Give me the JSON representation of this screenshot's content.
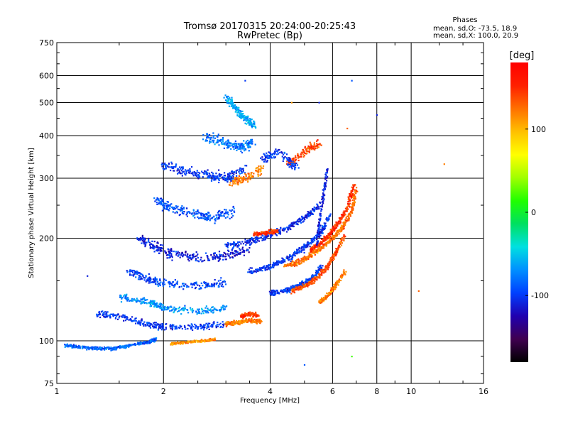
{
  "chart_data": {
    "type": "scatter",
    "title": "Tromsø 20170315 20:24:00-20:25:43",
    "subtitle": "RwPretec (Bp)",
    "xlabel": "Frequency [MHz]",
    "ylabel": "Stationary phase Virtual Height [km]",
    "x_scale": "log",
    "y_scale": "log",
    "xlim": [
      1,
      16
    ],
    "ylim": [
      75,
      750
    ],
    "x_ticks": [
      1,
      2,
      4,
      6,
      8,
      10,
      16
    ],
    "x_tick_labels": [
      "1",
      "2",
      "4",
      "6",
      "8",
      "10",
      "16"
    ],
    "y_ticks": [
      75,
      100,
      200,
      300,
      400,
      500,
      600,
      750
    ],
    "y_tick_labels": [
      "75",
      "100",
      "200",
      "300",
      "400",
      "500",
      "600",
      "750"
    ],
    "grid": true,
    "stats": {
      "title": "Phases",
      "line_o": "mean, sd,O: -73.5, 18.9",
      "line_x": "mean, sd,X: 100.0, 20.9"
    },
    "colorbar": {
      "label": "[deg]",
      "range": [
        -180,
        180
      ],
      "ticks": [
        100,
        0,
        -100
      ],
      "tick_labels": [
        "100",
        "0",
        "-100"
      ],
      "colors": [
        "#000000",
        "#400050",
        "#2000b0",
        "#0040ff",
        "#0090ff",
        "#00e0e0",
        "#00e060",
        "#20ff00",
        "#a0ff00",
        "#ffff00",
        "#ffc000",
        "#ff7000",
        "#ff2000",
        "#ff0000"
      ]
    },
    "traces": [
      {
        "x": [
          1.05,
          1.15,
          1.3,
          1.45,
          1.6,
          1.8,
          1.9
        ],
        "y": [
          97,
          96,
          95,
          95,
          97,
          99,
          101
        ],
        "phase": -85,
        "spread": 0.015
      },
      {
        "x": [
          1.3,
          1.5,
          1.8,
          2.0,
          2.5,
          3.0
        ],
        "y": [
          120,
          118,
          112,
          110,
          110,
          112
        ],
        "phase": -100,
        "spread": 0.03
      },
      {
        "x": [
          1.5,
          1.8,
          2.0,
          2.5,
          3.0
        ],
        "y": [
          135,
          130,
          125,
          122,
          125
        ],
        "phase": -70,
        "spread": 0.035
      },
      {
        "x": [
          1.6,
          1.8,
          2.0,
          2.5,
          3.0
        ],
        "y": [
          160,
          152,
          148,
          145,
          148
        ],
        "phase": -95,
        "spread": 0.04
      },
      {
        "x": [
          1.7,
          1.9,
          2.1,
          2.5,
          3.0,
          3.5
        ],
        "y": [
          200,
          188,
          180,
          175,
          178,
          185
        ],
        "phase": -110,
        "spread": 0.045
      },
      {
        "x": [
          1.9,
          2.1,
          2.5,
          2.8,
          3.2
        ],
        "y": [
          260,
          245,
          235,
          230,
          240
        ],
        "phase": -90,
        "spread": 0.05
      },
      {
        "x": [
          2.0,
          2.3,
          2.7,
          3.0,
          3.4
        ],
        "y": [
          330,
          315,
          305,
          300,
          320
        ],
        "phase": -100,
        "spread": 0.05
      },
      {
        "x": [
          2.6,
          3.0,
          3.3,
          3.6
        ],
        "y": [
          400,
          380,
          370,
          380
        ],
        "phase": -80,
        "spread": 0.05
      },
      {
        "x": [
          3.0,
          3.2,
          3.4,
          3.6
        ],
        "y": [
          520,
          480,
          450,
          430
        ],
        "phase": -60,
        "spread": 0.04
      },
      {
        "x": [
          3.1,
          3.4,
          3.8
        ],
        "y": [
          290,
          300,
          320
        ],
        "phase": 120,
        "spread": 0.04
      },
      {
        "x": [
          3.0,
          3.2,
          3.5,
          3.8
        ],
        "y": [
          112,
          113,
          115,
          114
        ],
        "phase": 120,
        "spread": 0.02
      },
      {
        "x": [
          3.3,
          3.5,
          3.7
        ],
        "y": [
          118,
          120,
          119
        ],
        "phase": 145,
        "spread": 0.02
      },
      {
        "x": [
          2.1,
          2.3,
          2.6,
          2.8
        ],
        "y": [
          98,
          99,
          100,
          101
        ],
        "phase": 115,
        "spread": 0.012
      },
      {
        "x": [
          3.0,
          3.5,
          4.0,
          4.5,
          5.0,
          5.5
        ],
        "y": [
          190,
          195,
          205,
          215,
          230,
          250
        ],
        "phase": -105,
        "spread": 0.03
      },
      {
        "x": [
          3.5,
          4.0,
          4.5,
          5.0,
          5.5,
          5.9
        ],
        "y": [
          160,
          165,
          175,
          188,
          205,
          235
        ],
        "phase": -100,
        "spread": 0.03
      },
      {
        "x": [
          4.0,
          4.4,
          4.8,
          5.2,
          5.6
        ],
        "y": [
          138,
          140,
          145,
          152,
          165
        ],
        "phase": -100,
        "spread": 0.025
      },
      {
        "x": [
          3.6,
          3.9,
          4.2
        ],
        "y": [
          205,
          208,
          210
        ],
        "phase": 150,
        "spread": 0.02
      },
      {
        "x": [
          4.4,
          4.8,
          5.2,
          5.6,
          6.0,
          6.4,
          6.8,
          7.0
        ],
        "y": [
          165,
          170,
          178,
          188,
          200,
          215,
          240,
          280
        ],
        "phase": 125,
        "spread": 0.025
      },
      {
        "x": [
          4.6,
          5.0,
          5.4,
          5.8,
          6.1,
          6.5
        ],
        "y": [
          140,
          145,
          152,
          165,
          180,
          205
        ],
        "phase": 135,
        "spread": 0.025
      },
      {
        "x": [
          5.2,
          5.6,
          5.9,
          6.2,
          6.6,
          6.9
        ],
        "y": [
          185,
          195,
          205,
          220,
          245,
          290
        ],
        "phase": 150,
        "spread": 0.025
      },
      {
        "x": [
          5.5,
          5.8,
          6.1,
          6.5
        ],
        "y": [
          130,
          135,
          145,
          160
        ],
        "phase": 120,
        "spread": 0.02
      },
      {
        "x": [
          5.4,
          5.6,
          5.8
        ],
        "y": [
          190,
          250,
          320
        ],
        "phase": -110,
        "spread": 0.02
      },
      {
        "x": [
          4.5,
          5.0,
          5.5
        ],
        "y": [
          330,
          360,
          380
        ],
        "phase": 140,
        "spread": 0.04
      },
      {
        "x": [
          3.8,
          4.2,
          4.8
        ],
        "y": [
          340,
          360,
          320
        ],
        "phase": -100,
        "spread": 0.05
      }
    ],
    "outliers": [
      {
        "x": 5.5,
        "y": 500,
        "phase": -110
      },
      {
        "x": 6.8,
        "y": 580,
        "phase": -90
      },
      {
        "x": 8.0,
        "y": 460,
        "phase": -110
      },
      {
        "x": 6.6,
        "y": 420,
        "phase": 130
      },
      {
        "x": 6.8,
        "y": 90,
        "phase": 20
      },
      {
        "x": 10.5,
        "y": 140,
        "phase": 130
      },
      {
        "x": 12.4,
        "y": 330,
        "phase": 120
      },
      {
        "x": 5.0,
        "y": 85,
        "phase": -90
      },
      {
        "x": 1.22,
        "y": 155,
        "phase": -110
      },
      {
        "x": 3.4,
        "y": 580,
        "phase": -100
      },
      {
        "x": 4.6,
        "y": 500,
        "phase": 110
      }
    ]
  }
}
